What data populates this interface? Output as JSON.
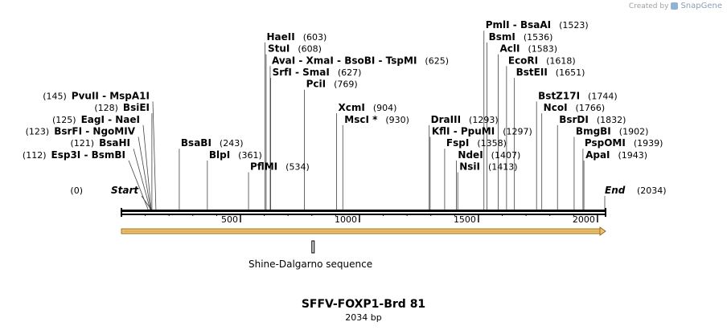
{
  "credit": {
    "prefix": "Created by",
    "brand": "SnapGene"
  },
  "map": {
    "title": "SFFV-FOXP1-Brd 81",
    "length_label": "2034 bp",
    "length": 2034,
    "start_label": "Start",
    "start_pos": "(0)",
    "end_label": "End",
    "end_pos": "(2034)",
    "ticks": [
      {
        "value": 500,
        "label": "500"
      },
      {
        "value": 1000,
        "label": "1000"
      },
      {
        "value": 1500,
        "label": "1500"
      },
      {
        "value": 2000,
        "label": "2000"
      }
    ],
    "feature": {
      "name": "Shine-Dalgarno sequence",
      "start": 800,
      "end": 806
    },
    "orf": {
      "start": 0,
      "end": 2034,
      "color": "#f3c26b"
    },
    "sites": [
      {
        "name": "PvuII  -  MspA1I",
        "pos": "(145)",
        "cut": 145,
        "side": "left",
        "tier": 9
      },
      {
        "name": "BsiEI",
        "pos": "(128)",
        "cut": 128,
        "side": "left",
        "tier": 8
      },
      {
        "name": "EagI  -  NaeI",
        "pos": "(125)",
        "cut": 125,
        "side": "left",
        "tier": 7
      },
      {
        "name": "BsrFI  -  NgoMIV",
        "pos": "(123)",
        "cut": 123,
        "side": "left",
        "tier": 6
      },
      {
        "name": "BsaHI",
        "pos": "(121)",
        "cut": 121,
        "side": "left",
        "tier": 5
      },
      {
        "name": "Esp3I  -  BsmBI",
        "pos": "(112)",
        "cut": 112,
        "side": "left",
        "tier": 4
      },
      {
        "name": "BsaBI",
        "pos": "(243)",
        "cut": 243,
        "side": "right",
        "tier": 5
      },
      {
        "name": "BlpI",
        "pos": "(361)",
        "cut": 361,
        "side": "right",
        "tier": 4
      },
      {
        "name": "PflMI",
        "pos": "(534)",
        "cut": 534,
        "side": "right",
        "tier": 3
      },
      {
        "name": "HaeII",
        "pos": "(603)",
        "cut": 603,
        "side": "right",
        "tier": 14
      },
      {
        "name": "StuI",
        "pos": "(608)",
        "cut": 608,
        "side": "right",
        "tier": 13
      },
      {
        "name": "AvaI  -  XmaI  -  BsoBI  -  TspMI",
        "pos": "(625)",
        "cut": 625,
        "side": "right",
        "tier": 12
      },
      {
        "name": "SrfI  -  SmaI",
        "pos": "(627)",
        "cut": 627,
        "side": "right",
        "tier": 11
      },
      {
        "name": "PciI",
        "pos": "(769)",
        "cut": 769,
        "side": "right",
        "tier": 10
      },
      {
        "name": "XcmI",
        "pos": "(904)",
        "cut": 904,
        "side": "right",
        "tier": 8
      },
      {
        "name": "MscI *",
        "pos": "(930)",
        "cut": 930,
        "side": "right",
        "tier": 7
      },
      {
        "name": "DraIII",
        "pos": "(1293)",
        "cut": 1293,
        "side": "right",
        "tier": 7
      },
      {
        "name": "KflI  -  PpuMI",
        "pos": "(1297)",
        "cut": 1297,
        "side": "right",
        "tier": 6
      },
      {
        "name": "FspI",
        "pos": "(1358)",
        "cut": 1358,
        "side": "right",
        "tier": 5
      },
      {
        "name": "NdeI",
        "pos": "(1407)",
        "cut": 1407,
        "side": "right",
        "tier": 4
      },
      {
        "name": "NsiI",
        "pos": "(1413)",
        "cut": 1413,
        "side": "right",
        "tier": 3
      },
      {
        "name": "PmlI  -  BsaAI",
        "pos": "(1523)",
        "cut": 1523,
        "side": "right",
        "tier": 15
      },
      {
        "name": "BsmI",
        "pos": "(1536)",
        "cut": 1536,
        "side": "right",
        "tier": 14
      },
      {
        "name": "AclI",
        "pos": "(1583)",
        "cut": 1583,
        "side": "right",
        "tier": 13
      },
      {
        "name": "EcoRI",
        "pos": "(1618)",
        "cut": 1618,
        "side": "right",
        "tier": 12
      },
      {
        "name": "BstEII",
        "pos": "(1651)",
        "cut": 1651,
        "side": "right",
        "tier": 11
      },
      {
        "name": "BstZ17I",
        "pos": "(1744)",
        "cut": 1744,
        "side": "right",
        "tier": 9
      },
      {
        "name": "NcoI",
        "pos": "(1766)",
        "cut": 1766,
        "side": "right",
        "tier": 8
      },
      {
        "name": "BsrDI",
        "pos": "(1832)",
        "cut": 1832,
        "side": "right",
        "tier": 7
      },
      {
        "name": "BmgBI",
        "pos": "(1902)",
        "cut": 1902,
        "side": "right",
        "tier": 6
      },
      {
        "name": "PspOMI",
        "pos": "(1939)",
        "cut": 1939,
        "side": "right",
        "tier": 5
      },
      {
        "name": "ApaI",
        "pos": "(1943)",
        "cut": 1943,
        "side": "right",
        "tier": 4
      }
    ]
  }
}
